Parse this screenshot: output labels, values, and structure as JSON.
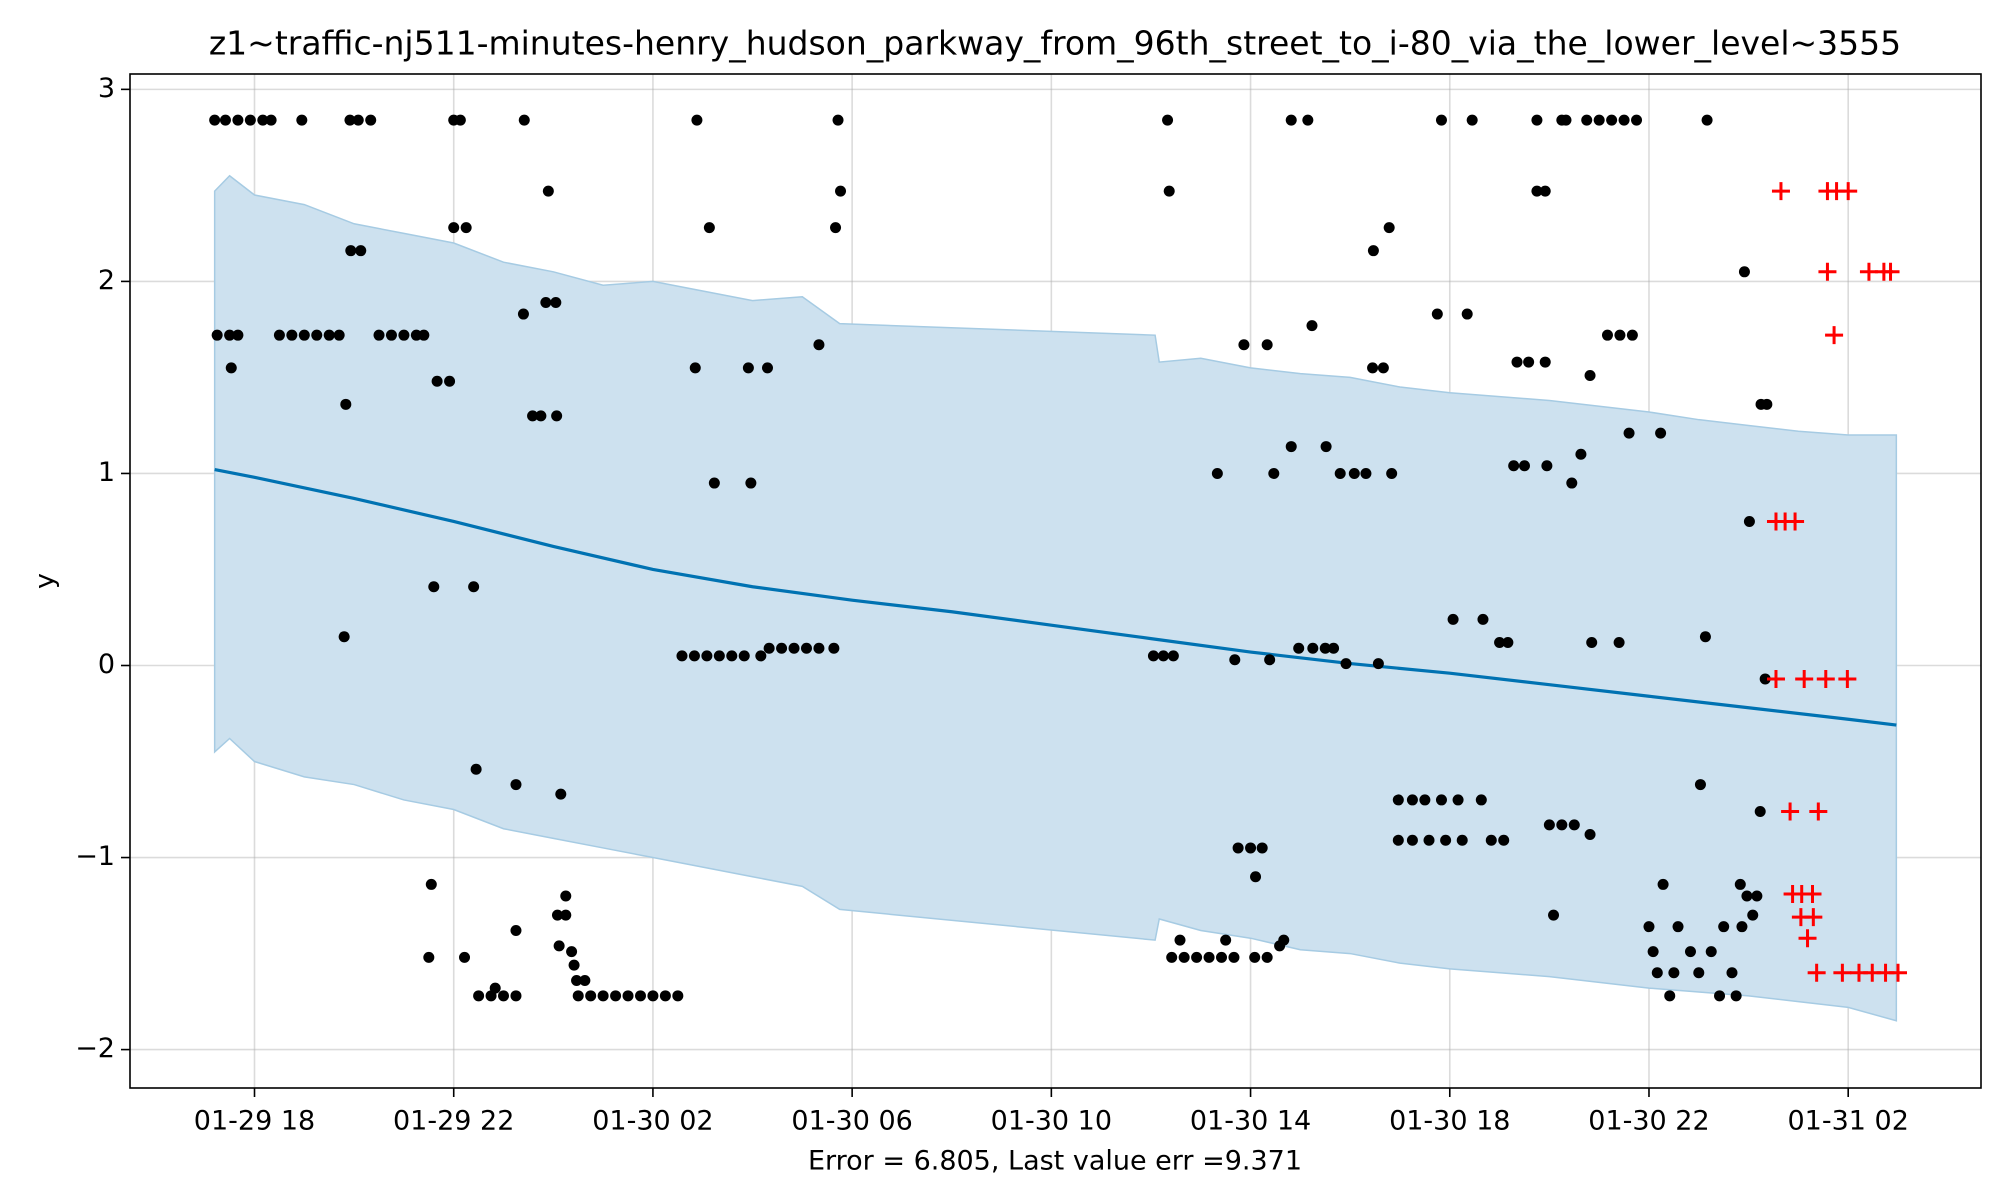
{
  "chart_data": {
    "type": "line",
    "title": "z1~traffic-nj511-minutes-henry_hudson_parkway_from_96th_street_to_i-80_via_the_lower_level~3555",
    "x_label": "Error = 6.805, Last value err =9.371",
    "y_label": "y",
    "xlim": [
      "01-29 15:30",
      "01-31 04:40"
    ],
    "ylim": [
      -2.2,
      3.08
    ],
    "xticks": [
      "01-29 18",
      "01-29 22",
      "01-30 02",
      "01-30 06",
      "01-30 10",
      "01-30 14",
      "01-30 18",
      "01-30 22",
      "01-31 02"
    ],
    "yticks": [
      {
        "value": -2,
        "label": "−2"
      },
      {
        "value": -1,
        "label": "−1"
      },
      0,
      1,
      2,
      3
    ],
    "grid": true,
    "series": [
      {
        "type": "band",
        "color": "#a6cbe3",
        "fill": "#cde1ef",
        "x": [
          "01-29 17:12",
          "01-29 17:30",
          "01-29 18:00",
          "01-29 19:00",
          "01-29 20:00",
          "01-29 21:00",
          "01-29 22:00",
          "01-29 23:00",
          "01-30 00:00",
          "01-30 01:00",
          "01-30 02:00",
          "01-30 03:00",
          "01-30 04:00",
          "01-30 05:00",
          "01-30 05:45",
          "01-30 12:05",
          "01-30 12:10",
          "01-30 13:00",
          "01-30 14:00",
          "01-30 15:00",
          "01-30 16:00",
          "01-30 17:00",
          "01-30 18:00",
          "01-30 19:00",
          "01-30 20:00",
          "01-30 21:00",
          "01-30 22:00",
          "01-30 23:00",
          "01-31 00:00",
          "01-31 01:00",
          "01-31 02:00",
          "01-31 02:58"
        ],
        "upper": [
          2.47,
          2.55,
          2.45,
          2.4,
          2.3,
          2.25,
          2.2,
          2.1,
          2.05,
          1.98,
          2.0,
          1.95,
          1.9,
          1.92,
          1.78,
          1.72,
          1.58,
          1.6,
          1.55,
          1.52,
          1.5,
          1.45,
          1.42,
          1.4,
          1.38,
          1.35,
          1.32,
          1.28,
          1.25,
          1.22,
          1.2,
          1.2
        ],
        "lower": [
          -0.45,
          -0.38,
          -0.5,
          -0.58,
          -0.62,
          -0.7,
          -0.75,
          -0.85,
          -0.9,
          -0.95,
          -1.0,
          -1.05,
          -1.1,
          -1.15,
          -1.27,
          -1.43,
          -1.32,
          -1.38,
          -1.42,
          -1.48,
          -1.5,
          -1.55,
          -1.58,
          -1.6,
          -1.62,
          -1.65,
          -1.68,
          -1.7,
          -1.72,
          -1.75,
          -1.78,
          -1.85
        ]
      },
      {
        "type": "line",
        "color": "#0072b2",
        "x": [
          "01-29 17:12",
          "01-29 18:00",
          "01-29 20:00",
          "01-29 22:00",
          "01-30 00:00",
          "01-30 02:00",
          "01-30 04:00",
          "01-30 06:00",
          "01-30 08:00",
          "01-30 10:00",
          "01-30 12:00",
          "01-30 14:00",
          "01-30 16:00",
          "01-30 18:00",
          "01-30 20:00",
          "01-30 22:00",
          "01-31 00:00",
          "01-31 02:00",
          "01-31 02:58"
        ],
        "values": [
          1.02,
          0.98,
          0.87,
          0.75,
          0.62,
          0.5,
          0.41,
          0.34,
          0.28,
          0.21,
          0.14,
          0.07,
          0.01,
          -0.04,
          -0.1,
          -0.16,
          -0.22,
          -0.28,
          -0.31
        ]
      },
      {
        "type": "scatter",
        "marker": "o",
        "color": "#000000",
        "x": [
          "01-29 17:12",
          "01-29 17:25",
          "01-29 17:40",
          "01-29 17:55",
          "01-29 18:10",
          "01-29 18:20",
          "01-29 18:57",
          "01-29 19:55",
          "01-29 20:05",
          "01-29 20:20",
          "01-29 22:00",
          "01-29 22:08",
          "01-29 23:25",
          "01-29 17:15",
          "01-29 17:30",
          "01-29 17:40",
          "01-29 18:30",
          "01-29 18:45",
          "01-29 19:00",
          "01-29 19:15",
          "01-29 19:30",
          "01-29 19:42",
          "01-29 20:30",
          "01-29 20:45",
          "01-29 21:00",
          "01-29 21:15",
          "01-29 21:24",
          "01-29 17:32",
          "01-29 19:50",
          "01-29 19:48",
          "01-29 19:56",
          "01-29 20:08",
          "01-29 21:40",
          "01-29 21:55",
          "01-29 21:36",
          "01-29 22:24",
          "01-29 22:00",
          "01-29 22:15",
          "01-29 23:24",
          "01-29 23:35",
          "01-29 23:45",
          "01-30 00:04",
          "01-29 23:51",
          "01-30 00:03",
          "01-29 23:54",
          "01-29 21:33",
          "01-29 21:30",
          "01-29 22:13",
          "01-29 22:27",
          "01-29 23:15",
          "01-29 23:15",
          "01-29 22:30",
          "01-29 22:45",
          "01-29 23:00",
          "01-29 23:15",
          "01-29 22:50",
          "01-30 00:09",
          "01-30 00:05",
          "01-30 00:15",
          "01-30 00:07",
          "01-30 00:15",
          "01-30 00:22",
          "01-30 00:25",
          "01-30 00:28",
          "01-30 00:38",
          "01-30 00:30",
          "01-30 00:45",
          "01-30 01:00",
          "01-30 01:15",
          "01-30 01:30",
          "01-30 01:45",
          "01-30 02:00",
          "01-30 02:15",
          "01-30 02:30",
          "01-30 02:35",
          "01-30 02:50",
          "01-30 03:05",
          "01-30 03:20",
          "01-30 03:35",
          "01-30 03:50",
          "01-30 04:10",
          "01-30 04:20",
          "01-30 04:35",
          "01-30 04:50",
          "01-30 05:05",
          "01-30 05:20",
          "01-30 05:38",
          "01-30 02:53",
          "01-30 05:43",
          "01-30 05:46",
          "01-30 03:08",
          "01-30 05:40",
          "01-30 02:51",
          "01-30 03:55",
          "01-30 04:18",
          "01-30 05:20",
          "01-30 03:14",
          "01-30 03:58",
          "01-30 12:03",
          "01-30 12:15",
          "01-30 12:27",
          "01-30 12:20",
          "01-30 12:22",
          "01-30 13:41",
          "01-30 14:23",
          "01-30 13:20",
          "01-30 13:52",
          "01-30 14:20",
          "01-30 14:28",
          "01-30 12:25",
          "01-30 12:40",
          "01-30 12:55",
          "01-30 13:10",
          "01-30 13:25",
          "01-30 13:40",
          "01-30 14:05",
          "01-30 14:20",
          "01-30 12:35",
          "01-30 13:30",
          "01-30 13:45",
          "01-30 14:00",
          "01-30 14:14",
          "01-30 14:06",
          "01-30 14:35",
          "01-30 14:40",
          "01-30 14:49",
          "01-30 15:09",
          "01-30 14:49",
          "01-30 15:31",
          "01-30 15:14",
          "01-30 14:58",
          "01-30 15:15",
          "01-30 15:30",
          "01-30 15:40",
          "01-30 15:55",
          "01-30 16:34",
          "01-30 15:48",
          "01-30 16:05",
          "01-30 16:19",
          "01-30 16:50",
          "01-30 16:28",
          "01-30 16:47",
          "01-30 16:27",
          "01-30 16:40",
          "01-30 16:58",
          "01-30 17:15",
          "01-30 17:30",
          "01-30 17:50",
          "01-30 18:10",
          "01-30 18:38",
          "01-30 16:58",
          "01-30 17:15",
          "01-30 17:35",
          "01-30 17:55",
          "01-30 18:15",
          "01-30 18:50",
          "01-30 19:05",
          "01-30 17:50",
          "01-30 18:27",
          "01-30 17:45",
          "01-30 18:21",
          "01-30 18:04",
          "01-30 18:40",
          "01-30 19:00",
          "01-30 19:10",
          "01-30 19:17",
          "01-30 19:30",
          "01-30 19:57",
          "01-30 19:21",
          "01-30 19:35",
          "01-30 19:55",
          "01-30 19:45",
          "01-30 19:45",
          "01-30 19:55",
          "01-30 20:15",
          "01-30 20:20",
          "01-30 20:27",
          "01-30 20:38",
          "01-30 20:49",
          "01-30 20:51",
          "01-30 21:24",
          "01-30 20:00",
          "01-30 20:15",
          "01-30 20:30",
          "01-30 20:49",
          "01-30 20:05",
          "01-30 20:45",
          "01-30 21:00",
          "01-30 21:15",
          "01-30 21:30",
          "01-30 21:45",
          "01-30 21:10",
          "01-30 21:25",
          "01-30 21:40",
          "01-30 21:36",
          "01-30 22:14",
          "01-30 22:00",
          "01-30 22:05",
          "01-30 22:10",
          "01-30 22:17",
          "01-30 22:25",
          "01-30 22:30",
          "01-30 22:35",
          "01-30 22:50",
          "01-30 23:00",
          "01-30 23:02",
          "01-30 23:10",
          "01-30 23:08",
          "01-30 23:15",
          "01-30 23:30",
          "01-30 23:25",
          "01-30 23:40",
          "01-30 23:45",
          "01-30 23:50",
          "01-30 23:55",
          "01-30 23:58",
          "01-30 23:52",
          "01-31 00:01",
          "01-31 00:10",
          "01-31 00:05",
          "01-31 00:14",
          "01-31 00:20",
          "01-31 00:15",
          "01-31 00:22"
        ],
        "values": [
          2.84,
          2.84,
          2.84,
          2.84,
          2.84,
          2.84,
          2.84,
          2.84,
          2.84,
          2.84,
          2.84,
          2.84,
          2.84,
          1.72,
          1.72,
          1.72,
          1.72,
          1.72,
          1.72,
          1.72,
          1.72,
          1.72,
          1.72,
          1.72,
          1.72,
          1.72,
          1.72,
          1.55,
          1.36,
          0.15,
          2.16,
          2.16,
          1.48,
          1.48,
          0.41,
          0.41,
          2.28,
          2.28,
          1.83,
          1.3,
          1.3,
          1.3,
          1.89,
          1.89,
          2.47,
          -1.14,
          -1.52,
          -1.52,
          -0.54,
          -0.62,
          -1.38,
          -1.72,
          -1.72,
          -1.72,
          -1.72,
          -1.68,
          -0.67,
          -1.3,
          -1.3,
          -1.46,
          -1.2,
          -1.49,
          -1.56,
          -1.64,
          -1.64,
          -1.72,
          -1.72,
          -1.72,
          -1.72,
          -1.72,
          -1.72,
          -1.72,
          -1.72,
          -1.72,
          0.05,
          0.05,
          0.05,
          0.05,
          0.05,
          0.05,
          0.05,
          0.09,
          0.09,
          0.09,
          0.09,
          0.09,
          0.09,
          2.84,
          2.84,
          2.47,
          2.28,
          2.28,
          1.55,
          1.55,
          1.55,
          1.67,
          0.95,
          0.95,
          0.05,
          0.05,
          0.05,
          2.84,
          2.47,
          0.03,
          0.03,
          1.0,
          1.67,
          1.67,
          1.0,
          -1.52,
          -1.52,
          -1.52,
          -1.52,
          -1.52,
          -1.52,
          -1.52,
          -1.52,
          -1.43,
          -1.43,
          -0.95,
          -0.95,
          -0.95,
          -1.1,
          -1.46,
          -1.43,
          2.84,
          2.84,
          1.14,
          1.14,
          1.77,
          0.09,
          0.09,
          0.09,
          0.09,
          0.01,
          0.01,
          1.0,
          1.0,
          1.0,
          1.0,
          2.16,
          2.28,
          1.55,
          1.55,
          -0.7,
          -0.7,
          -0.7,
          -0.7,
          -0.7,
          -0.7,
          -0.91,
          -0.91,
          -0.91,
          -0.91,
          -0.91,
          -0.91,
          -0.91,
          2.84,
          2.84,
          1.83,
          1.83,
          0.24,
          0.24,
          0.12,
          0.12,
          1.04,
          1.04,
          1.04,
          1.58,
          1.58,
          1.58,
          2.84,
          2.47,
          2.47,
          2.84,
          2.84,
          0.95,
          1.1,
          1.51,
          0.12,
          0.12,
          -0.83,
          -0.83,
          -0.83,
          -0.88,
          -1.3,
          2.84,
          2.84,
          2.84,
          2.84,
          2.84,
          1.72,
          1.72,
          1.72,
          1.21,
          1.21,
          -1.36,
          -1.49,
          -1.6,
          -1.14,
          -1.72,
          -1.6,
          -1.36,
          -1.49,
          -1.6,
          -0.62,
          2.84,
          0.15,
          -1.49,
          -1.36,
          -1.72,
          -1.6,
          -1.72,
          -1.14,
          2.05,
          -1.2,
          -1.36,
          0.75,
          -1.2,
          -1.3,
          -0.76,
          -0.07,
          1.36,
          1.36
        ]
      },
      {
        "type": "scatter",
        "marker": "+",
        "color": "#ff0000",
        "x": [
          "01-31 00:39",
          "01-31 01:35",
          "01-31 01:46",
          "01-31 02:00",
          "01-31 01:35",
          "01-31 02:25",
          "01-31 02:43",
          "01-31 02:51",
          "01-31 01:43",
          "01-31 00:33",
          "01-31 00:44",
          "01-31 00:56",
          "01-31 00:33",
          "01-31 01:07",
          "01-31 01:33",
          "01-31 01:59",
          "01-31 00:50",
          "01-31 01:24",
          "01-31 00:53",
          "01-31 01:04",
          "01-31 01:17",
          "01-31 01:03",
          "01-31 01:18",
          "01-31 01:11",
          "01-31 01:22",
          "01-31 01:53",
          "01-31 02:13",
          "01-31 02:29",
          "01-31 02:45",
          "01-31 03:00"
        ],
        "values": [
          2.47,
          2.47,
          2.47,
          2.47,
          2.05,
          2.05,
          2.05,
          2.05,
          1.72,
          0.75,
          0.75,
          0.75,
          -0.07,
          -0.07,
          -0.07,
          -0.07,
          -0.76,
          -0.76,
          -1.19,
          -1.19,
          -1.19,
          -1.31,
          -1.31,
          -1.42,
          -1.6,
          -1.6,
          -1.6,
          -1.6,
          -1.6,
          -1.6
        ]
      }
    ]
  }
}
